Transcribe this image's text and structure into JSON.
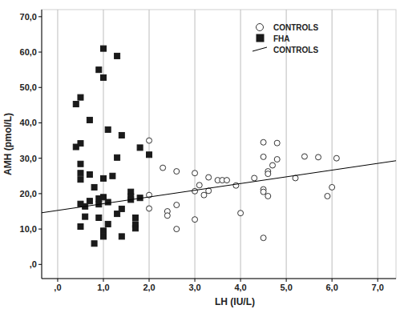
{
  "chart_data": {
    "type": "scatter",
    "x_label": "LH (IU/L)",
    "y_label": "AMH (pmol/L)",
    "xlim": [
      -0.35,
      7.4
    ],
    "ylim": [
      -4,
      72
    ],
    "xticks": [
      {
        "value": 0,
        "label": ",0"
      },
      {
        "value": 1,
        "label": "1,0"
      },
      {
        "value": 2,
        "label": "2,0"
      },
      {
        "value": 3,
        "label": "3,0"
      },
      {
        "value": 4,
        "label": "4,0"
      },
      {
        "value": 5,
        "label": "5,0"
      },
      {
        "value": 6,
        "label": "6,0"
      },
      {
        "value": 7,
        "label": "7,0"
      }
    ],
    "yticks": [
      {
        "value": 0,
        "label": ",0"
      },
      {
        "value": 10,
        "label": "10,0"
      },
      {
        "value": 20,
        "label": "20,0"
      },
      {
        "value": 30,
        "label": "30,0"
      },
      {
        "value": 40,
        "label": "40,0"
      },
      {
        "value": 50,
        "label": "50,0"
      },
      {
        "value": 60,
        "label": "60,0"
      },
      {
        "value": 70,
        "label": "70,0"
      }
    ],
    "grid": true,
    "legend": "top-right",
    "series": [
      {
        "name": "CONTROLS",
        "type": "scatter",
        "marker": "circle",
        "color": "#333333",
        "x": [
          2.0,
          2.0,
          2.0,
          2.3,
          2.4,
          2.4,
          2.6,
          2.6,
          2.6,
          3.0,
          3.0,
          3.0,
          3.1,
          3.2,
          3.3,
          3.3,
          3.5,
          3.6,
          3.7,
          3.9,
          4.0,
          4.3,
          4.5,
          4.5,
          4.5,
          4.5,
          4.5,
          4.6,
          4.6,
          4.7,
          4.6,
          4.8,
          4.8,
          5.2,
          5.4,
          5.7,
          5.9,
          6.0,
          6.1
        ],
        "values": [
          35.0,
          19.6,
          15.8,
          27.3,
          15.0,
          13.8,
          26.3,
          10.0,
          16.8,
          25.8,
          20.7,
          12.7,
          22.4,
          19.6,
          20.8,
          24.6,
          23.8,
          23.8,
          23.8,
          22.3,
          14.5,
          24.4,
          21.2,
          20.5,
          30.4,
          34.5,
          7.5,
          26.3,
          25.6,
          28.0,
          19.3,
          34.3,
          29.7,
          24.4,
          30.5,
          30.3,
          19.3,
          21.8,
          30.0
        ]
      },
      {
        "name": "FHA",
        "type": "scatter",
        "marker": "square",
        "color": "#1a1a1a",
        "x": [
          0.4,
          0.5,
          0.4,
          0.5,
          0.5,
          0.5,
          0.5,
          0.5,
          0.5,
          0.6,
          0.6,
          0.7,
          0.7,
          0.7,
          0.8,
          0.8,
          0.9,
          0.9,
          0.9,
          0.9,
          1.0,
          1.0,
          1.0,
          1.0,
          1.0,
          1.1,
          1.1,
          1.1,
          1.2,
          1.3,
          1.3,
          1.3,
          1.4,
          1.4,
          1.4,
          1.6,
          1.6,
          1.6,
          1.7,
          1.7,
          1.7,
          1.8,
          1.8,
          2.0,
          1.0
        ],
        "values": [
          45.3,
          47.2,
          33.2,
          34.2,
          28.4,
          25.8,
          24.0,
          17.1,
          10.7,
          16.4,
          13.5,
          40.8,
          25.4,
          17.9,
          21.8,
          5.9,
          55.0,
          18.6,
          13.2,
          17.0,
          61.0,
          52.8,
          24.3,
          19.0,
          7.9,
          38.1,
          17.6,
          11.4,
          25.0,
          58.9,
          30.2,
          14.3,
          36.5,
          15.7,
          7.9,
          20.5,
          19.2,
          18.3,
          13.2,
          11.3,
          10.2,
          33.0,
          18.8,
          31.0,
          9.5
        ]
      },
      {
        "name": "CONTROLS",
        "type": "line",
        "line_style": "solid",
        "color": "#000000",
        "x": [
          -0.35,
          7.4
        ],
        "values": [
          14.6,
          29.3
        ]
      }
    ]
  }
}
